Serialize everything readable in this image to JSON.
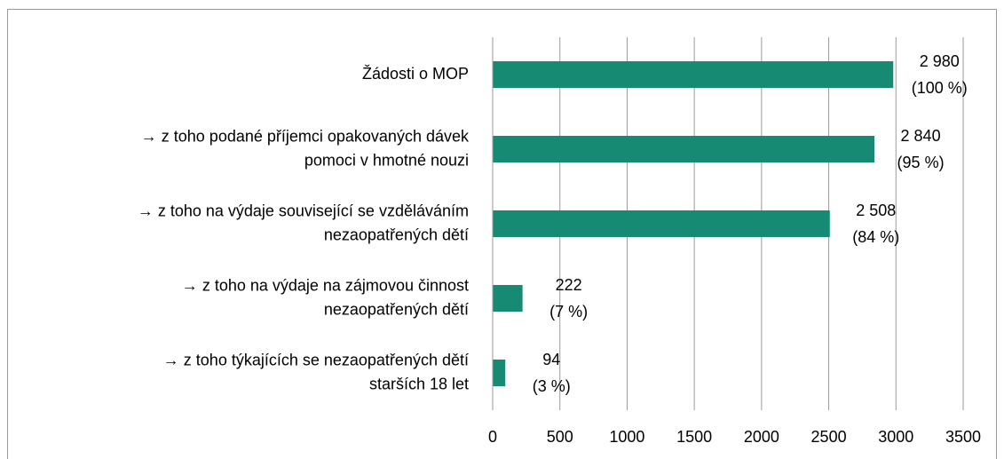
{
  "chart_data": {
    "type": "bar",
    "orientation": "horizontal",
    "categories": [
      [
        "Žádosti o MOP"
      ],
      [
        "→ z toho podané příjemci opakovaných dávek",
        "pomoci v hmotné nouzi"
      ],
      [
        "→ z toho na výdaje související se vzděláváním",
        "nezaopatřených dětí"
      ],
      [
        "→ z toho na výdaje na zájmovou činnost",
        "nezaopatřených dětí"
      ],
      [
        "→ z toho týkajících se nezaopatřených dětí",
        "starších 18 let"
      ]
    ],
    "values": [
      2980,
      2840,
      2508,
      222,
      94
    ],
    "value_labels": [
      "2 980",
      "2 840",
      "2 508",
      "222",
      "94"
    ],
    "share_values": [
      100,
      95,
      84,
      7,
      3
    ],
    "share_labels": [
      "(100 %)",
      "(95 %)",
      "(84 %)",
      "(7 %)",
      "(3 %)"
    ],
    "color": "#168a72",
    "xlim": [
      0,
      3500
    ],
    "xticks": [
      0,
      500,
      1000,
      1500,
      2000,
      2500,
      3000,
      3500
    ],
    "grid": true
  }
}
